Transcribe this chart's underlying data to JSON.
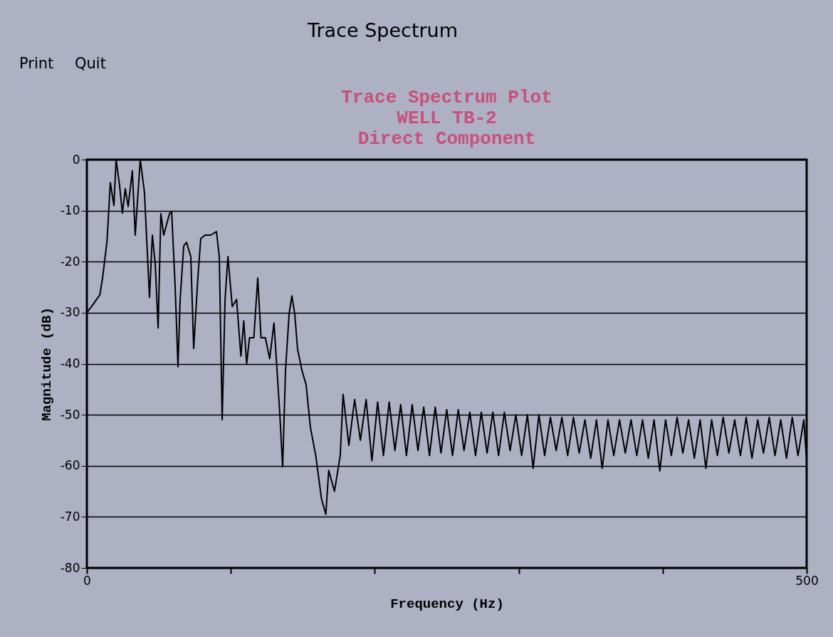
{
  "chart_data": {
    "type": "line",
    "title": "Trace Spectrum Plot",
    "subtitle": "WELL  TB-2\nDirect Component",
    "xlabel": "Frequency (Hz)",
    "ylabel": "Magnitude (dB)",
    "annotations": [
      "Trace Spectrum",
      "Print",
      "Quit"
    ],
    "xlim": [
      0,
      500
    ],
    "xticks": [
      0,
      {
        "value": 100,
        "label": null
      },
      {
        "value": 200,
        "label": null
      },
      {
        "value": 300,
        "label": null
      },
      {
        "value": 400,
        "label": null
      },
      500
    ],
    "ylim": [
      -80,
      0
    ],
    "yticks": [
      -80,
      -70,
      -60,
      -50,
      -40,
      -30,
      -20,
      -10,
      0
    ],
    "grid": "y",
    "legend": false,
    "line_style": "solid",
    "series": [
      {
        "color": "#000000",
        "x": [
          0,
          4,
          9,
          11,
          14,
          16.3,
          18.8,
          20.3,
          22.7,
          24.7,
          26.7,
          28.7,
          31.6,
          33.6,
          37.1,
          40,
          43.5,
          45.5,
          47.5,
          49.5,
          51.4,
          53.4,
          57.4,
          58.9,
          61.3,
          63.3,
          64.8,
          67.3,
          69.2,
          72.2,
          74.2,
          77.1,
          79.1,
          82.1,
          86,
          90,
          92,
          94,
          96,
          98,
          101,
          104,
          107,
          109,
          111,
          113,
          116,
          118.7,
          121,
          124,
          127,
          130,
          134,
          136,
          138,
          140.5,
          142.4,
          144.4,
          146.4,
          149.4,
          152.3,
          155.3,
          159,
          163,
          166,
          168,
          172,
          176,
          178,
          182,
          186,
          190,
          194,
          198,
          202,
          206,
          210,
          214,
          218,
          222,
          226,
          230,
          234,
          238,
          242,
          246,
          250,
          254,
          258,
          262,
          266,
          270,
          274,
          278,
          282,
          286,
          290,
          294,
          298,
          302,
          306,
          310,
          314,
          318,
          322,
          326,
          330,
          334,
          338,
          342,
          346,
          350,
          354,
          358,
          362,
          366,
          370,
          374,
          378,
          382,
          386,
          390,
          394,
          398,
          402,
          406,
          410,
          414,
          418,
          422,
          426,
          430,
          434,
          438,
          442,
          446,
          450,
          454,
          458,
          462,
          466,
          470,
          474,
          478,
          482,
          486,
          490,
          494,
          498,
          500
        ],
        "values": [
          -30,
          -28.5,
          -26.5,
          -23,
          -16,
          -4.5,
          -9,
          0,
          -5,
          -10.5,
          -5.7,
          -9.2,
          -2.2,
          -14.8,
          0,
          -6.4,
          -27,
          -14.8,
          -20.4,
          -33,
          -10.6,
          -14.8,
          -10.6,
          -10.2,
          -24.6,
          -40.6,
          -27.4,
          -16.9,
          -16.2,
          -19,
          -37,
          -23.2,
          -15.5,
          -14.8,
          -14.8,
          -14.1,
          -19,
          -51,
          -27.4,
          -19,
          -28.8,
          -27.4,
          -38.5,
          -31.6,
          -40,
          -34.9,
          -34.9,
          -23.2,
          -34.9,
          -34.9,
          -39,
          -32,
          -49.7,
          -60.2,
          -41.3,
          -30.2,
          -26.7,
          -30.2,
          -37.2,
          -41.3,
          -44.1,
          -52.5,
          -58,
          -66.5,
          -69.5,
          -60.9,
          -65,
          -58,
          -46,
          -56,
          -47,
          -55,
          -47,
          -59,
          -47.5,
          -58,
          -47.5,
          -57,
          -48,
          -58,
          -48,
          -57,
          -48.5,
          -58,
          -48.5,
          -57.5,
          -49,
          -58,
          -49,
          -57,
          -49.5,
          -58,
          -49.5,
          -57.5,
          -49.5,
          -58,
          -49.5,
          -57,
          -50,
          -58,
          -50,
          -60.5,
          -50,
          -58,
          -50.5,
          -57,
          -50.5,
          -58,
          -50.5,
          -57.5,
          -51,
          -58.5,
          -51,
          -60.5,
          -51,
          -58,
          -51,
          -57.5,
          -51,
          -58,
          -51,
          -58.5,
          -51,
          -61,
          -51,
          -58,
          -50.5,
          -57.5,
          -51,
          -58.5,
          -51,
          -60.5,
          -51,
          -58,
          -50.5,
          -57.5,
          -51,
          -58,
          -50.5,
          -58.5,
          -51,
          -57.5,
          -50.5,
          -58,
          -51,
          -58.5,
          -50.5,
          -58,
          -51,
          -59
        ]
      }
    ]
  }
}
